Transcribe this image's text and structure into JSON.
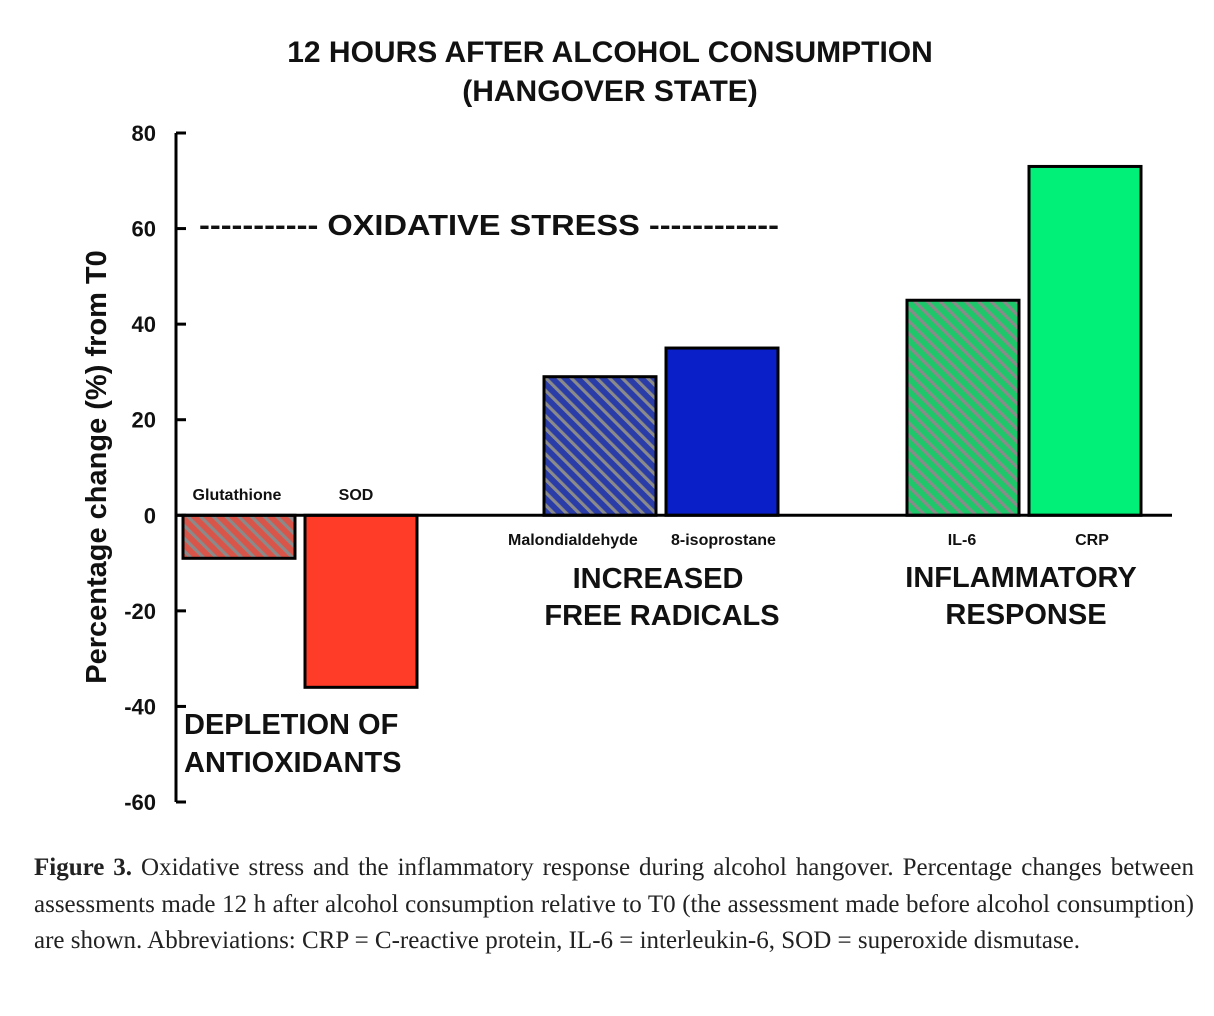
{
  "chart_data": {
    "type": "bar",
    "title_line1": "12 HOURS AFTER ALCOHOL CONSUMPTION",
    "title_line2": "(HANGOVER STATE)",
    "ylabel": "Percentage change (%) from T0",
    "ylim": [
      -60,
      80
    ],
    "yticks": [
      80,
      60,
      40,
      20,
      0,
      -20,
      -40,
      -60
    ],
    "ytick_labels": [
      "80",
      "60",
      "40",
      "20",
      "0",
      "-20",
      "-40",
      "-60"
    ],
    "bars": [
      {
        "label": "Glutathione",
        "value": -9,
        "color": "#e8574a",
        "hatched": true,
        "group": 0
      },
      {
        "label": "SOD",
        "value": -36,
        "color": "#ff3c28",
        "hatched": false,
        "group": 0
      },
      {
        "label": "Malondialdehyde",
        "value": 29,
        "color": "#3a4a9e",
        "hatched": true,
        "group": 1
      },
      {
        "label": "8-isoprostane",
        "value": 35,
        "color": "#0a1fc8",
        "hatched": false,
        "group": 1
      },
      {
        "label": "IL-6",
        "value": 45,
        "color": "#1ec86a",
        "hatched": true,
        "group": 2
      },
      {
        "label": "CRP",
        "value": 73,
        "color": "#00f078",
        "hatched": false,
        "group": 2
      }
    ],
    "annotations": {
      "oxidative_stress": "----------- OXIDATIVE STRESS ------------",
      "group_labels": [
        {
          "line1": "DEPLETION OF",
          "line2": "ANTIOXIDANTS"
        },
        {
          "line1": "INCREASED",
          "line2": "FREE RADICALS"
        },
        {
          "line1": "INFLAMMATORY",
          "line2": "RESPONSE"
        }
      ]
    }
  },
  "caption": {
    "label": "Figure 3.",
    "text": " Oxidative stress and the inflammatory response during alcohol hangover. Percentage changes between assessments made 12 h after alcohol consumption relative to T0 (the assessment made before alcohol consumption) are shown. Abbreviations: CRP = C-reactive protein, IL-6 = interleukin-6, SOD = superoxide dismutase."
  },
  "colors": {
    "hatch_stripe": "#8a8a8a",
    "outline": "#000000"
  }
}
